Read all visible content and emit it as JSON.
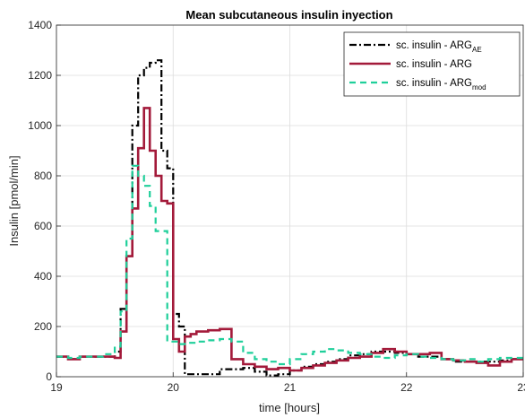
{
  "chart_data": {
    "type": "line",
    "title": "Mean subcutaneous insulin inyection",
    "xlabel": "time [hours]",
    "ylabel": "Insulin [pmol/min]",
    "xlim": [
      19,
      23
    ],
    "ylim": [
      0,
      1400
    ],
    "xticks": [
      19,
      20,
      21,
      22,
      23
    ],
    "yticks": [
      0,
      200,
      400,
      600,
      800,
      1000,
      1200,
      1400
    ],
    "grid": true,
    "legend_position": "top-right",
    "series": [
      {
        "name": "sc. insulin - ARG",
        "name_sub": "AE",
        "color": "#000000",
        "style": "dashdot",
        "step": true,
        "x": [
          19.0,
          19.1,
          19.2,
          19.3,
          19.4,
          19.5,
          19.55,
          19.6,
          19.65,
          19.7,
          19.75,
          19.8,
          19.85,
          19.9,
          19.95,
          20.0,
          20.05,
          20.1,
          20.15,
          20.2,
          20.3,
          20.4,
          20.5,
          20.6,
          20.7,
          20.8,
          20.9,
          21.0,
          21.1,
          21.2,
          21.3,
          21.4,
          21.5,
          21.6,
          21.7,
          21.8,
          21.9,
          22.0,
          22.1,
          22.2,
          22.3,
          22.4,
          22.5,
          22.6,
          22.7,
          22.8,
          22.9
        ],
        "y": [
          80,
          70,
          80,
          80,
          80,
          100,
          270,
          480,
          1000,
          1200,
          1230,
          1250,
          1260,
          900,
          830,
          250,
          200,
          10,
          10,
          10,
          10,
          30,
          30,
          35,
          20,
          5,
          10,
          25,
          40,
          50,
          60,
          70,
          85,
          90,
          100,
          100,
          95,
          90,
          80,
          80,
          70,
          60,
          60,
          60,
          60,
          65,
          70
        ]
      },
      {
        "name": "sc. insulin - ARG",
        "name_sub": "",
        "color": "#a31a3a",
        "style": "solid",
        "step": true,
        "x": [
          19.0,
          19.1,
          19.2,
          19.3,
          19.4,
          19.5,
          19.55,
          19.6,
          19.65,
          19.7,
          19.75,
          19.8,
          19.85,
          19.9,
          19.95,
          20.0,
          20.05,
          20.1,
          20.15,
          20.2,
          20.3,
          20.4,
          20.5,
          20.6,
          20.7,
          20.8,
          20.9,
          21.0,
          21.1,
          21.2,
          21.3,
          21.4,
          21.5,
          21.6,
          21.7,
          21.8,
          21.9,
          22.0,
          22.1,
          22.2,
          22.3,
          22.4,
          22.5,
          22.6,
          22.7,
          22.8,
          22.9
        ],
        "y": [
          80,
          70,
          80,
          80,
          80,
          75,
          180,
          480,
          670,
          910,
          1070,
          900,
          800,
          700,
          690,
          150,
          100,
          160,
          170,
          180,
          185,
          190,
          70,
          50,
          40,
          30,
          35,
          25,
          35,
          45,
          55,
          65,
          75,
          80,
          95,
          110,
          100,
          90,
          90,
          95,
          70,
          65,
          60,
          55,
          45,
          60,
          70
        ]
      },
      {
        "name": "sc. insulin - ARG",
        "name_sub": "mod",
        "color": "#1fcf9a",
        "style": "dashed",
        "step": true,
        "x": [
          19.0,
          19.1,
          19.2,
          19.3,
          19.4,
          19.5,
          19.55,
          19.6,
          19.65,
          19.7,
          19.75,
          19.8,
          19.85,
          19.9,
          19.95,
          20.0,
          20.05,
          20.1,
          20.2,
          20.3,
          20.4,
          20.5,
          20.6,
          20.7,
          20.8,
          20.9,
          21.0,
          21.1,
          21.2,
          21.3,
          21.4,
          21.5,
          21.6,
          21.7,
          21.8,
          21.9,
          22.0,
          22.1,
          22.2,
          22.3,
          22.4,
          22.5,
          22.6,
          22.7,
          22.8,
          22.9
        ],
        "y": [
          80,
          75,
          80,
          80,
          90,
          120,
          260,
          550,
          840,
          800,
          760,
          680,
          580,
          580,
          140,
          140,
          130,
          135,
          140,
          145,
          150,
          140,
          95,
          70,
          60,
          50,
          70,
          90,
          100,
          110,
          105,
          95,
          90,
          80,
          75,
          85,
          90,
          80,
          75,
          70,
          65,
          70,
          60,
          70,
          75,
          75
        ]
      }
    ]
  }
}
